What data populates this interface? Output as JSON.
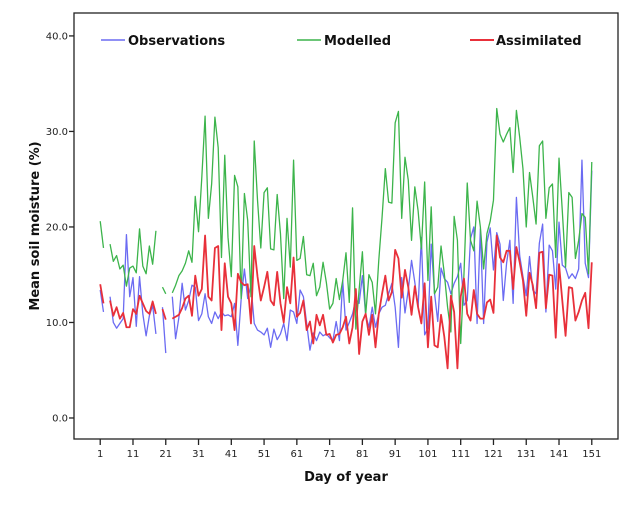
{
  "chart_data": {
    "type": "line",
    "title": "",
    "xlabel": "Day of year",
    "ylabel": "Mean soil moisture (%)",
    "xlim": [
      -7,
      159
    ],
    "ylim": [
      -2.2,
      42.4
    ],
    "x_ticks": [
      1,
      11,
      21,
      31,
      41,
      51,
      61,
      71,
      81,
      91,
      101,
      111,
      121,
      131,
      141,
      151
    ],
    "x_tick_labels": [
      "1",
      "11",
      "21",
      "31",
      "41",
      "51",
      "61",
      "71",
      "81",
      "91",
      "101",
      "111",
      "121",
      "131",
      "141",
      "151"
    ],
    "y_ticks": [
      0,
      10,
      20,
      30,
      40
    ],
    "y_tick_labels": [
      "0.0",
      "10.0",
      "20.0",
      "30.0",
      "40.0"
    ],
    "grid": false,
    "legend_position": "top",
    "missing_days": [
      3,
      19,
      22
    ],
    "series": [
      {
        "name": "Observations",
        "color": "#6b6bf2",
        "values": [
          13.4,
          11.1,
          null,
          12.7,
          10.0,
          9.4,
          9.9,
          10.4,
          19.2,
          12.7,
          14.7,
          9.6,
          14.8,
          10.9,
          8.6,
          10.7,
          11.8,
          8.8,
          null,
          11.6,
          6.8,
          null,
          12.7,
          8.3,
          10.5,
          14.1,
          11.3,
          12.3,
          13.9,
          13.7,
          10.2,
          10.9,
          13.0,
          10.6,
          9.9,
          11.1,
          10.4,
          11.1,
          10.7,
          10.8,
          10.6,
          12.0,
          7.6,
          12.4,
          15.6,
          12.5,
          13.9,
          9.9,
          9.2,
          9.0,
          8.7,
          9.4,
          7.4,
          9.3,
          8.2,
          8.8,
          9.9,
          8.1,
          11.3,
          11.1,
          9.9,
          13.4,
          12.7,
          9.9,
          7.1,
          8.9,
          8.1,
          9.0,
          8.6,
          8.8,
          8.4,
          8.1,
          10.1,
          8.1,
          14.4,
          9.2,
          10.0,
          10.9,
          12.4,
          12.0,
          14.9,
          10.8,
          9.5,
          11.6,
          9.5,
          10.9,
          11.6,
          11.8,
          13.0,
          14.1,
          11.6,
          7.4,
          14.7,
          11.0,
          13.4,
          16.5,
          14.2,
          11.6,
          18.9,
          8.7,
          9.4,
          18.2,
          13.1,
          10.1,
          15.7,
          14.6,
          14.2,
          13.0,
          14.1,
          14.8,
          16.2,
          11.8,
          12.3,
          18.8,
          20.0,
          9.9,
          19.8,
          9.9,
          18.4,
          19.9,
          15.5,
          19.4,
          18.2,
          12.3,
          16.2,
          18.6,
          12.0,
          23.1,
          17.0,
          14.8,
          12.8,
          16.9,
          13.4,
          13.0,
          18.3,
          20.3,
          11.1,
          18.1,
          17.5,
          13.5,
          20.5,
          16.0,
          15.7,
          14.6,
          15.1,
          14.6,
          15.6,
          27.0,
          16.2,
          14.7,
          25.9
        ]
      },
      {
        "name": "Modelled",
        "color": "#3cb44b",
        "values": [
          20.6,
          17.8,
          null,
          18.2,
          16.4,
          17.0,
          15.6,
          16.0,
          13.8,
          15.7,
          15.9,
          15.2,
          19.8,
          15.9,
          15.1,
          18.0,
          16.1,
          19.6,
          null,
          13.7,
          13.0,
          null,
          13.1,
          13.9,
          14.9,
          15.4,
          16.2,
          17.5,
          16.3,
          23.2,
          19.5,
          25.2,
          31.6,
          20.9,
          24.5,
          31.5,
          28.3,
          16.8,
          27.5,
          18.9,
          14.8,
          25.4,
          24.2,
          12.5,
          23.5,
          20.7,
          12.7,
          29.0,
          22.8,
          17.8,
          23.6,
          24.1,
          17.7,
          17.6,
          23.4,
          19.3,
          12.5,
          20.9,
          15.8,
          27.0,
          16.5,
          16.7,
          19.0,
          15.0,
          14.9,
          16.2,
          12.8,
          13.7,
          16.3,
          14.2,
          11.4,
          12.0,
          14.6,
          12.4,
          14.4,
          17.3,
          12.1,
          22.0,
          9.3,
          13.4,
          17.4,
          10.8,
          15.0,
          14.2,
          10.9,
          16.5,
          21.0,
          26.1,
          22.6,
          22.5,
          30.9,
          32.1,
          20.9,
          27.3,
          24.9,
          18.6,
          24.2,
          21.7,
          17.7,
          24.7,
          14.4,
          22.1,
          13.0,
          13.7,
          18.0,
          15.1,
          11.6,
          9.0,
          21.1,
          18.6,
          7.8,
          15.1,
          24.6,
          18.6,
          17.5,
          22.7,
          20.0,
          15.6,
          19.3,
          20.6,
          22.8,
          32.4,
          29.7,
          28.9,
          29.7,
          30.4,
          25.7,
          32.2,
          29.4,
          26.1,
          20.0,
          25.7,
          23.1,
          20.3,
          28.5,
          29.0,
          20.9,
          24.1,
          24.5,
          16.8,
          27.2,
          21.7,
          15.8,
          23.6,
          23.1,
          16.7,
          18.6,
          21.4,
          21.0,
          15.1,
          26.8
        ]
      },
      {
        "name": "Assimilated",
        "color": "#e8303a",
        "values": [
          14.0,
          12.0,
          null,
          12.3,
          10.7,
          11.6,
          10.4,
          11.0,
          9.5,
          9.5,
          11.4,
          10.9,
          12.8,
          12.0,
          11.2,
          10.9,
          12.2,
          10.9,
          null,
          11.4,
          10.3,
          null,
          10.4,
          10.6,
          10.8,
          11.5,
          12.5,
          12.8,
          10.7,
          14.9,
          12.8,
          13.5,
          19.1,
          12.7,
          12.3,
          17.8,
          18.0,
          9.2,
          16.2,
          12.7,
          12.0,
          9.2,
          15.1,
          14.2,
          13.9,
          14.0,
          9.9,
          18.0,
          14.8,
          12.3,
          13.7,
          15.3,
          12.3,
          11.8,
          15.3,
          12.0,
          10.0,
          13.7,
          12.0,
          16.8,
          10.6,
          11.0,
          12.3,
          9.2,
          10.1,
          7.8,
          10.8,
          9.7,
          10.8,
          8.7,
          8.8,
          7.9,
          8.7,
          8.8,
          9.5,
          10.6,
          7.8,
          9.5,
          13.5,
          6.7,
          10.1,
          10.9,
          8.7,
          10.8,
          7.4,
          10.9,
          13.0,
          14.9,
          12.3,
          13.2,
          17.6,
          16.7,
          12.6,
          15.5,
          13.7,
          10.8,
          13.8,
          11.6,
          9.9,
          14.1,
          7.4,
          12.7,
          7.6,
          7.4,
          10.8,
          8.5,
          5.2,
          12.8,
          11.1,
          5.2,
          12.7,
          14.6,
          10.9,
          10.2,
          13.4,
          10.9,
          10.4,
          10.4,
          12.1,
          12.4,
          11.0,
          19.1,
          16.8,
          16.3,
          17.5,
          17.5,
          13.5,
          17.9,
          16.3,
          14.4,
          10.7,
          15.2,
          13.9,
          11.5,
          17.3,
          17.4,
          11.5,
          15.0,
          14.9,
          8.4,
          16.1,
          12.3,
          8.6,
          13.7,
          13.6,
          10.2,
          11.1,
          12.3,
          13.1,
          9.4,
          16.3
        ]
      }
    ]
  }
}
